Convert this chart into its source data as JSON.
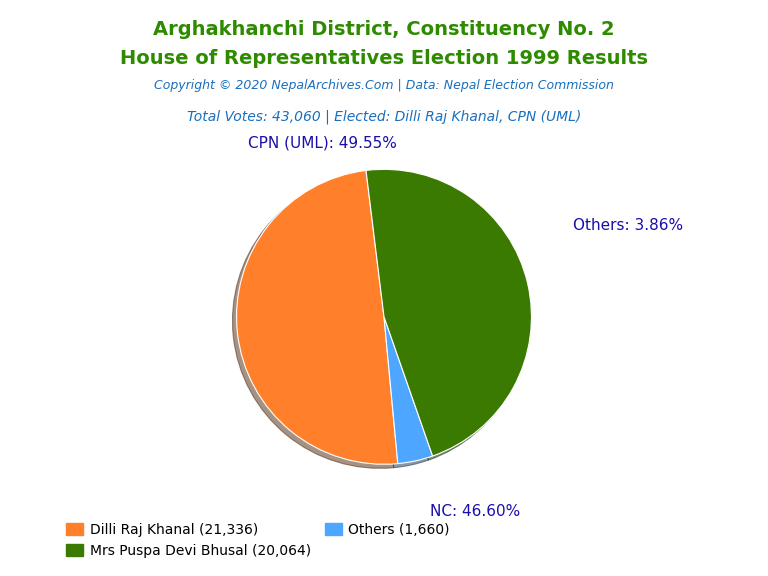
{
  "title_line1": "Arghakhanchi District, Constituency No. 2",
  "title_line2": "House of Representatives Election 1999 Results",
  "title_color": "#2e8b00",
  "copyright_text": "Copyright © 2020 NepalArchives.Com | Data: Nepal Election Commission",
  "copyright_color": "#1a6fbd",
  "total_votes_text": "Total Votes: 43,060 | Elected: Dilli Raj Khanal, CPN (UML)",
  "total_votes_color": "#1a6fbd",
  "slices": [
    {
      "label": "CPN (UML): 49.55%",
      "value": 21336,
      "color": "#ff7f2a"
    },
    {
      "label": "Others: 3.86%",
      "value": 1660,
      "color": "#4da6ff"
    },
    {
      "label": "NC: 46.60%",
      "value": 20064,
      "color": "#3a7a00"
    }
  ],
  "legend_entries": [
    {
      "label": "Dilli Raj Khanal (21,336)",
      "color": "#ff7f2a"
    },
    {
      "label": "Mrs Puspa Devi Bhusal (20,064)",
      "color": "#3a7a00"
    },
    {
      "label": "Others (1,660)",
      "color": "#4da6ff"
    }
  ],
  "label_color": "#1a0dab",
  "label_fontsize": 11,
  "startangle": 97,
  "background_color": "#ffffff"
}
